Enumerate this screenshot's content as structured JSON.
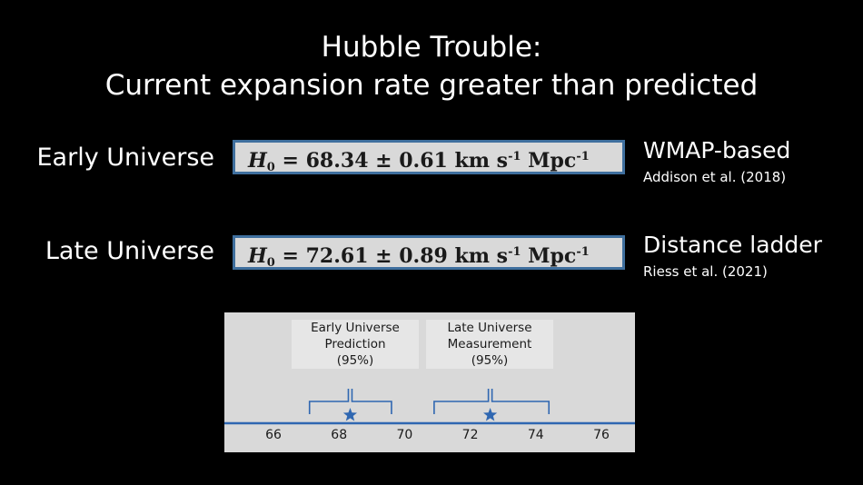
{
  "title": {
    "line1": "Hubble Trouble:",
    "line2": "Current expansion rate greater than predicted"
  },
  "rows": [
    {
      "label": "Early Universe",
      "symbol": "H",
      "subscript": "0",
      "value_text": "= 68.34 ± 0.61 km s",
      "exp1": "-1",
      "unit2": " Mpc",
      "exp2": "-1",
      "source_main": "WMAP-based",
      "source_sub": "Addison et al. (2018)"
    },
    {
      "label": "Late Universe",
      "symbol": "H",
      "subscript": "0",
      "value_text": "= 72.61 ± 0.89 km s",
      "exp1": "-1",
      "unit2": " Mpc",
      "exp2": "-1",
      "source_main": "Distance ladder",
      "source_sub": "Riess et al. (2021)"
    }
  ],
  "chart_data": {
    "type": "interval",
    "x_ticks": [
      66,
      68,
      70,
      72,
      74,
      76
    ],
    "xlim": [
      65,
      77
    ],
    "intervals": [
      {
        "label_lines": [
          "Early Universe",
          "Prediction",
          "(95%)"
        ],
        "low": 67.1,
        "high": 69.6,
        "center": 68.34
      },
      {
        "label_lines": [
          "Late Universe",
          "Measurement",
          "(95%)"
        ],
        "low": 70.9,
        "high": 74.4,
        "center": 72.61
      }
    ]
  },
  "colors": {
    "background": "#000000",
    "box_fill": "#d9d9d9",
    "box_border": "#3f6f9e",
    "axis_blue": "#2f67b1",
    "star_blue": "#2f67b1"
  }
}
